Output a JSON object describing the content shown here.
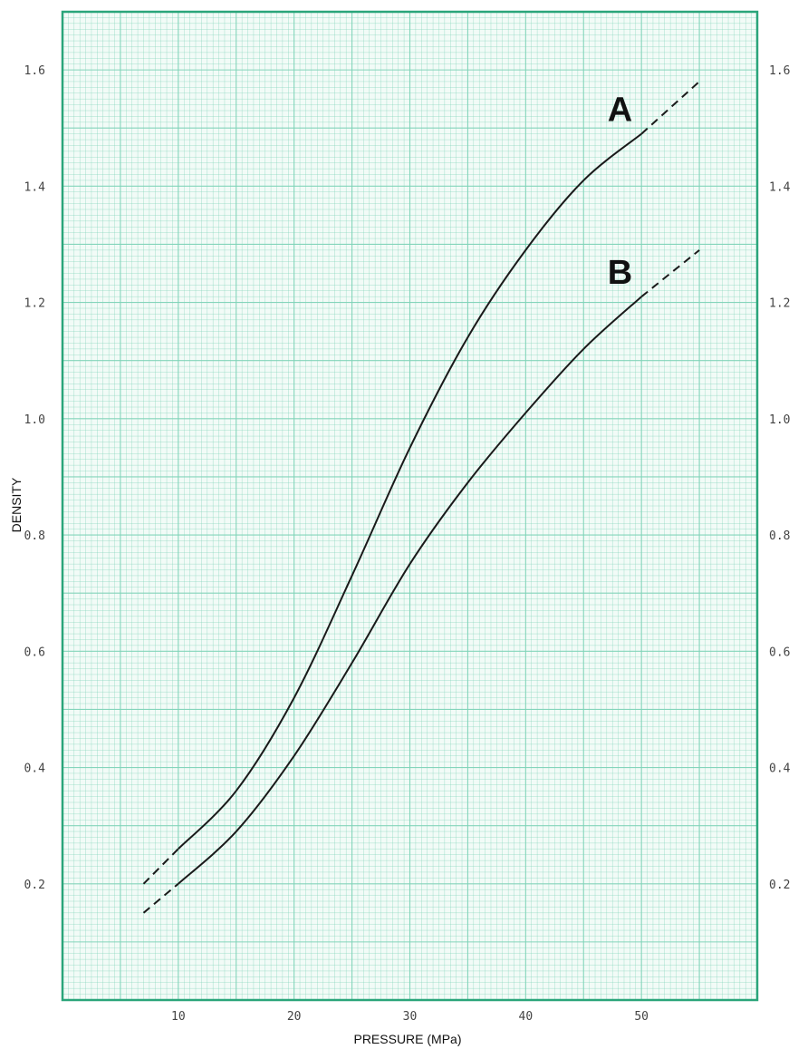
{
  "chart_data": {
    "type": "line",
    "xlabel": "PRESSURE (MPa)",
    "ylabel": "DENSITY",
    "xlim": [
      0,
      60
    ],
    "ylim": [
      0,
      1.7
    ],
    "x_ticks": [
      "10",
      "20",
      "30",
      "40",
      "50"
    ],
    "x_tick_values": [
      10,
      20,
      30,
      40,
      50
    ],
    "y_ticks_left": [
      "0.2",
      "0.4",
      "0.6",
      "0.8",
      "1.0",
      "1.2",
      "1.4",
      "1.6"
    ],
    "y_ticks_right": [
      "0.2",
      "0.4",
      "0.6",
      "0.8",
      "1.0",
      "1.2",
      "1.4",
      "1.6"
    ],
    "y_tick_values": [
      0.2,
      0.4,
      0.6,
      0.8,
      1.0,
      1.2,
      1.4,
      1.6
    ],
    "grid": true,
    "grid_color": "#7fd3b8",
    "frame_color": "#2aa57a",
    "series": [
      {
        "name": "A",
        "points": [
          [
            7,
            0.2
          ],
          [
            10,
            0.26
          ],
          [
            15,
            0.36
          ],
          [
            20,
            0.52
          ],
          [
            25,
            0.73
          ],
          [
            30,
            0.95
          ],
          [
            35,
            1.14
          ],
          [
            40,
            1.29
          ],
          [
            45,
            1.41
          ],
          [
            50,
            1.49
          ],
          [
            55,
            1.58
          ]
        ],
        "solid_range": [
          10,
          50
        ]
      },
      {
        "name": "B",
        "points": [
          [
            7,
            0.15
          ],
          [
            10,
            0.2
          ],
          [
            15,
            0.29
          ],
          [
            20,
            0.42
          ],
          [
            25,
            0.58
          ],
          [
            30,
            0.75
          ],
          [
            35,
            0.89
          ],
          [
            40,
            1.01
          ],
          [
            45,
            1.12
          ],
          [
            50,
            1.21
          ],
          [
            55,
            1.29
          ]
        ],
        "solid_range": [
          10,
          50
        ]
      }
    ]
  }
}
